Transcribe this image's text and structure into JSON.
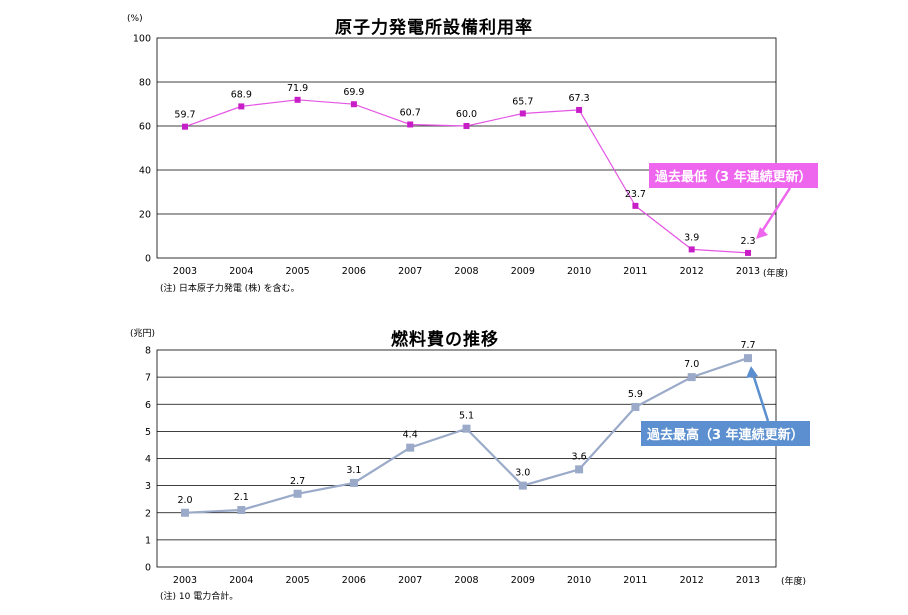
{
  "charts": [
    {
      "title": "原子力発電所設備利用率",
      "unit_label": "(%)",
      "year_unit": "(年度)",
      "note": "(注) 日本原子力発電 (株) を含む。",
      "callout": "過去最低（3 年連続更新）",
      "colors": {
        "line": "#e455e4",
        "marker": "#c81ec8",
        "callout_bg": "#ee66ee"
      }
    },
    {
      "title": "燃料費の推移",
      "unit_label": "(兆円)",
      "year_unit": "(年度)",
      "note": "(注) 10 電力合計。",
      "callout": "過去最高（3 年連続更新）",
      "colors": {
        "line": "#9aaac8",
        "marker": "#9aaac8",
        "callout_bg": "#5b8fcf"
      }
    }
  ],
  "chart_data": [
    {
      "type": "line",
      "title": "原子力発電所設備利用率",
      "ylabel": "(%)",
      "xlabel": "(年度)",
      "categories": [
        "2003",
        "2004",
        "2005",
        "2006",
        "2007",
        "2008",
        "2009",
        "2010",
        "2011",
        "2012",
        "2013"
      ],
      "values": [
        59.7,
        68.9,
        71.9,
        69.9,
        60.7,
        60.0,
        65.7,
        67.3,
        23.7,
        3.9,
        2.3
      ],
      "data_labels": [
        "59.7",
        "68.9",
        "71.9",
        "69.9",
        "60.7",
        "60.0",
        "65.7",
        "67.3",
        "23.7",
        "3.9",
        "2.3"
      ],
      "ylim": [
        0,
        100
      ],
      "yticks": [
        0,
        20,
        40,
        60,
        80,
        100
      ],
      "grid": true,
      "annotation": "過去最低（3 年連続更新）"
    },
    {
      "type": "line",
      "title": "燃料費の推移",
      "ylabel": "(兆円)",
      "xlabel": "(年度)",
      "categories": [
        "2003",
        "2004",
        "2005",
        "2006",
        "2007",
        "2008",
        "2009",
        "2010",
        "2011",
        "2012",
        "2013"
      ],
      "values": [
        2.0,
        2.1,
        2.7,
        3.1,
        4.4,
        5.1,
        3.0,
        3.6,
        5.9,
        7.0,
        7.7
      ],
      "data_labels": [
        "2.0",
        "2.1",
        "2.7",
        "3.1",
        "4.4",
        "5.1",
        "3.0",
        "3.6",
        "5.9",
        "7.0",
        "7.7"
      ],
      "ylim": [
        0,
        8
      ],
      "yticks": [
        0,
        1,
        2,
        3,
        4,
        5,
        6,
        7,
        8
      ],
      "grid": true,
      "annotation": "過去最高（3 年連続更新）"
    }
  ]
}
